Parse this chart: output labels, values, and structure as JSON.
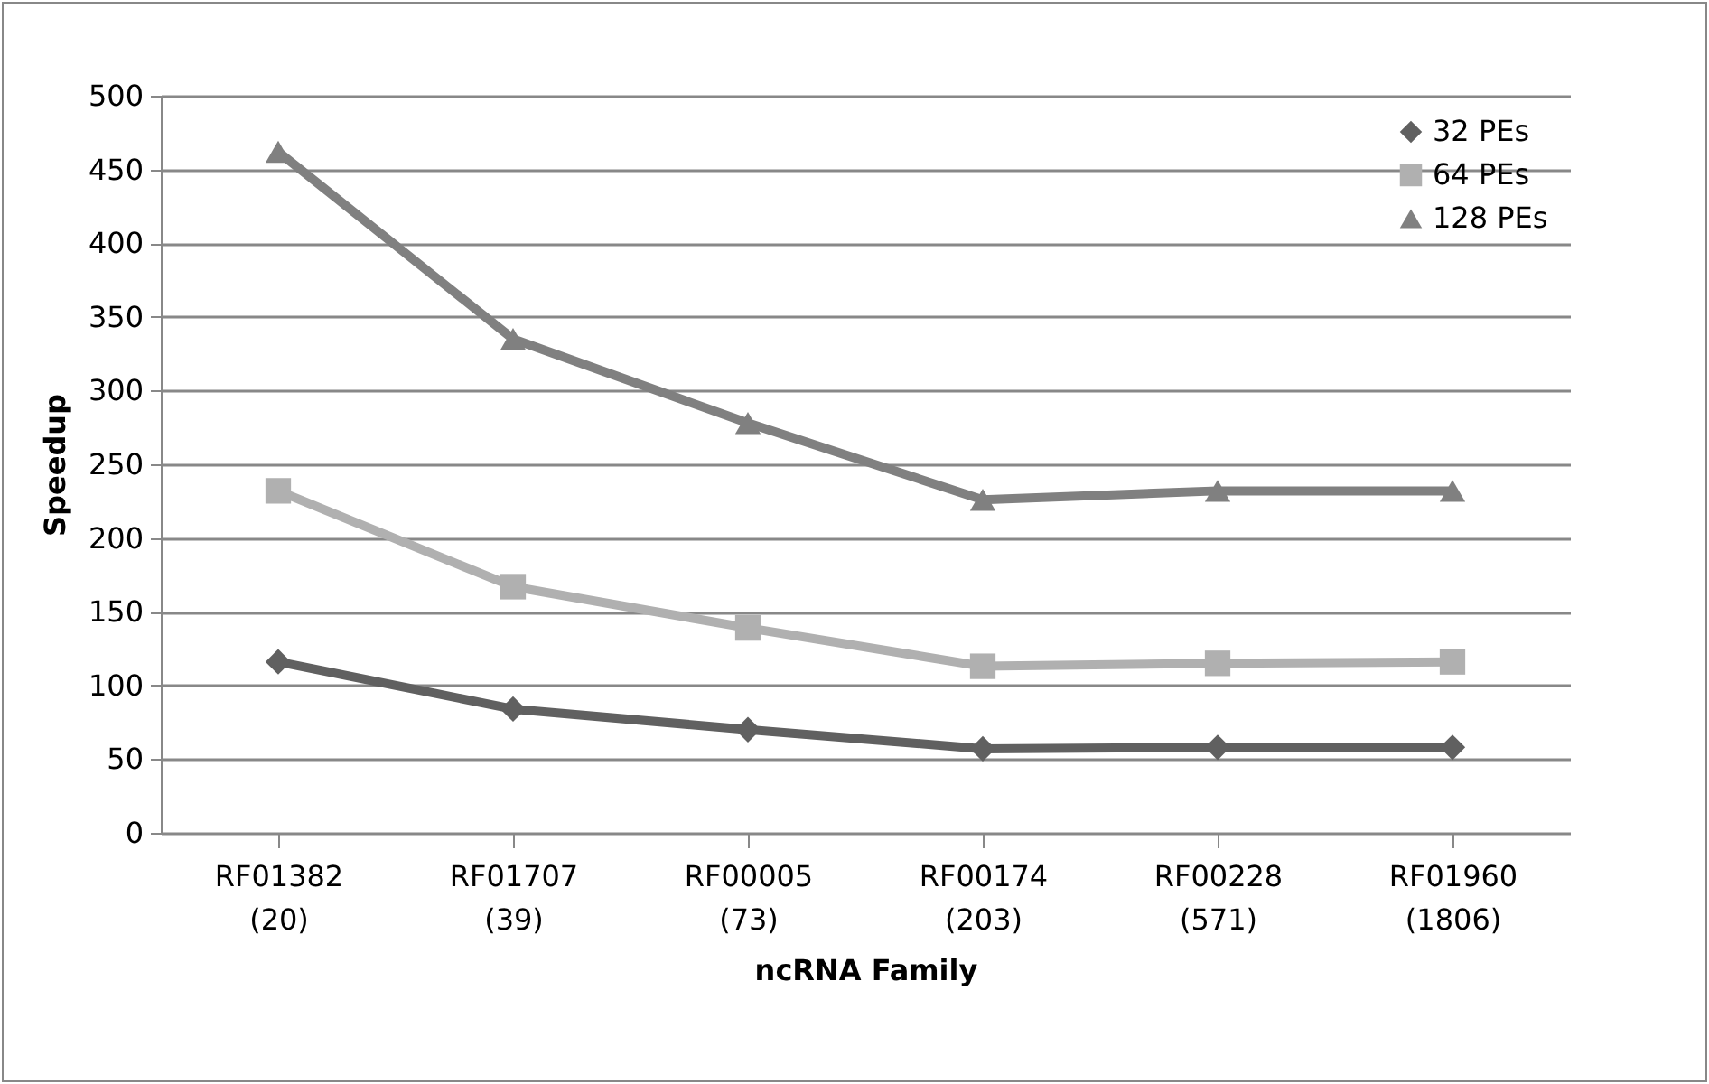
{
  "chart_data": {
    "type": "line",
    "xlabel": "ncRNA Family",
    "ylabel": "Speedup",
    "categories": [
      "RF01382\n(20)",
      "RF01707\n(39)",
      "RF00005\n(73)",
      "RF00174\n(203)",
      "RF00228\n(571)",
      "RF01960\n(1806)"
    ],
    "series": [
      {
        "name": "32 PEs",
        "color": "#606060",
        "marker": "diamond",
        "values": [
          116,
          84,
          70,
          57,
          58,
          58
        ]
      },
      {
        "name": "64 PEs",
        "color": "#b0b0b0",
        "marker": "square",
        "values": [
          232,
          167,
          139,
          113,
          115,
          116
        ]
      },
      {
        "name": "128 PEs",
        "color": "#808080",
        "marker": "triangle",
        "values": [
          462,
          335,
          278,
          226,
          232,
          232
        ]
      }
    ],
    "ylim": [
      0,
      500
    ],
    "yticks": [
      0,
      50,
      100,
      150,
      200,
      250,
      300,
      350,
      400,
      450,
      500
    ],
    "grid": "y",
    "legend": "top right"
  }
}
